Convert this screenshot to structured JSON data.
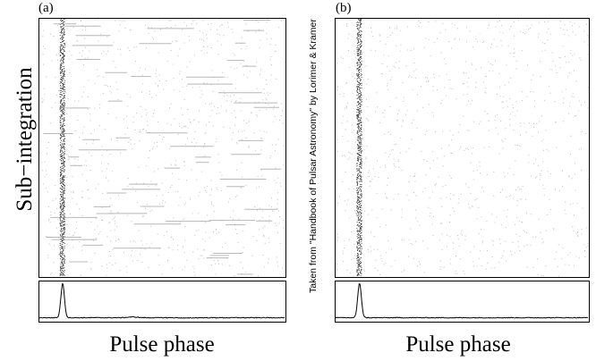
{
  "figure": {
    "credit": "Taken from \"Handbook of Pulsar Astronomy\" by Lorimer & Kramer"
  },
  "chart_data": [
    {
      "type": "heatmap",
      "panel_label": "(a)",
      "ylabel": "Sub−integration",
      "xlabel": "Pulse phase",
      "pulse_phase_center": 0.095,
      "pulse_width": 0.012,
      "rfi": "strong narrow-band interference streaks present",
      "profile": {
        "type": "line",
        "peak_phase": 0.095,
        "peak_level": 1.0,
        "baseline_level": 0.06,
        "secondary_bumps": [
          {
            "phase": 0.38,
            "level": 0.08
          },
          {
            "phase": 0.52,
            "level": 0.06
          },
          {
            "phase": 0.6,
            "level": 0.05
          }
        ]
      },
      "colors": {
        "pulse": "#303030",
        "noise": "#8a8a8a",
        "axes": "#000000"
      }
    },
    {
      "type": "heatmap",
      "panel_label": "(b)",
      "xlabel": "Pulse phase",
      "pulse_phase_center": 0.095,
      "pulse_width": 0.012,
      "rfi": "interference removed",
      "profile": {
        "type": "line",
        "peak_phase": 0.095,
        "peak_level": 1.0,
        "baseline_level": 0.06,
        "secondary_bumps": []
      },
      "colors": {
        "pulse": "#303030",
        "noise": "#8a8a8a",
        "axes": "#000000"
      }
    }
  ]
}
